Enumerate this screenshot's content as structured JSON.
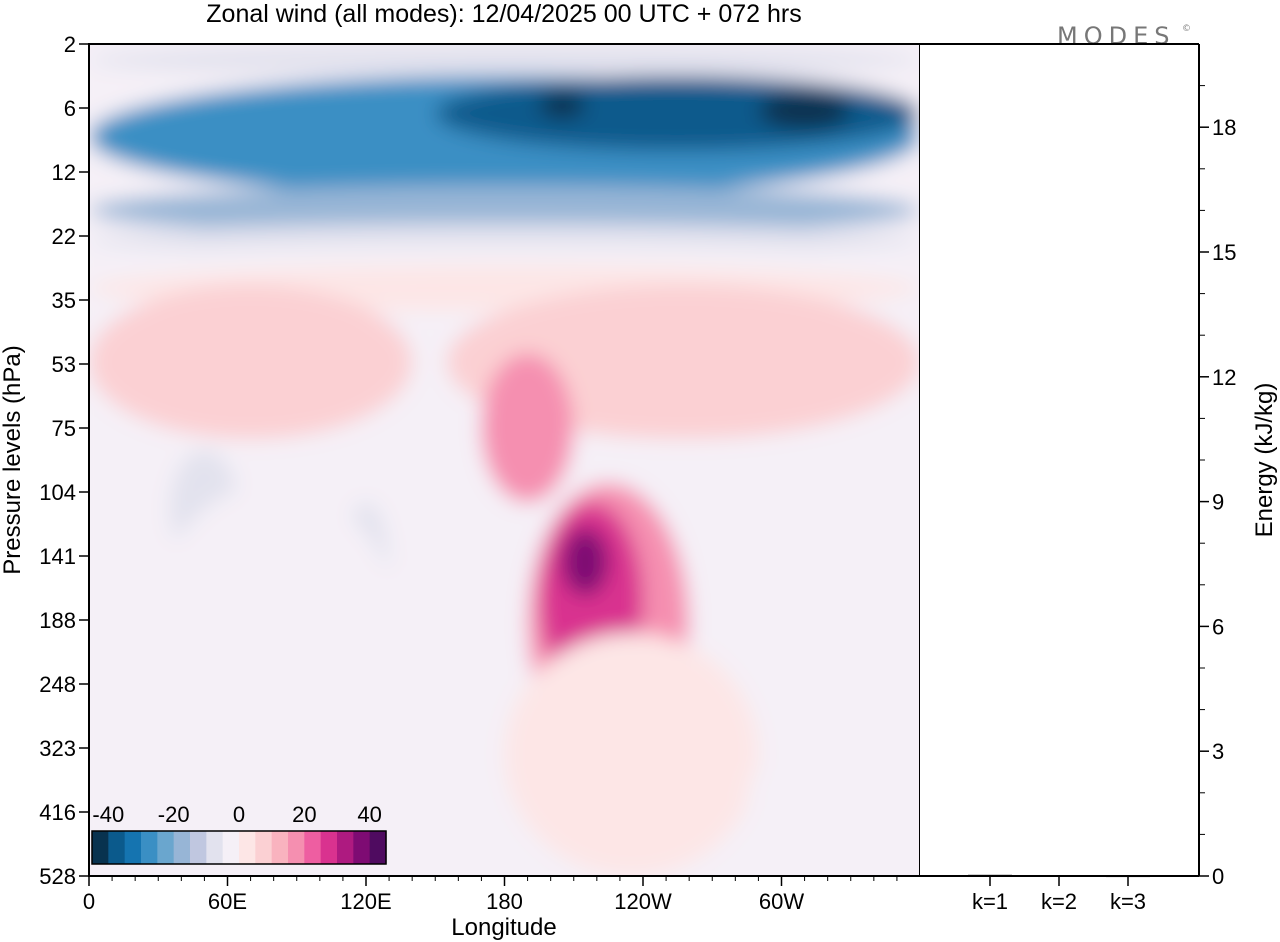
{
  "chart_data": {
    "type": "heatmap",
    "title": "Zonal wind (all modes):  12/04/2025  00 UTC  + 072 hrs",
    "logo_text": "MODES",
    "logo_mark": "©",
    "xlabel": "Longitude",
    "ylabel": "Pressure levels (hPa)",
    "y2label": "Energy (kJ/kg)",
    "x_ticks": [
      "0",
      "60E",
      "120E",
      "180",
      "120W",
      "60W"
    ],
    "y_ticks": [
      "2",
      "6",
      "12",
      "22",
      "35",
      "53",
      "75",
      "104",
      "141",
      "188",
      "248",
      "323",
      "416",
      "528"
    ],
    "y2_ticks": [
      "0",
      "3",
      "6",
      "9",
      "12",
      "15",
      "18"
    ],
    "energy_bars": {
      "categories": [
        "k=1",
        "k=2",
        "k=3"
      ],
      "values": [
        0.03,
        0.02,
        0.01
      ],
      "ylim": [
        0,
        20
      ]
    },
    "colorbar": {
      "tick_labels": [
        "-40",
        "-20",
        "0",
        "20",
        "40"
      ],
      "range": [
        -45,
        45
      ],
      "colors": [
        "#08324f",
        "#0b5a8c",
        "#1574b0",
        "#3a8fc4",
        "#6aa6ce",
        "#97b5d6",
        "#c0c7e0",
        "#e2e2ee",
        "#f5f0f7",
        "#fde6e6",
        "#fbd0d3",
        "#f9b3bf",
        "#f58fb0",
        "#ee5ea1",
        "#d9328f",
        "#ae1a80",
        "#7e0b73",
        "#4f0b60"
      ]
    },
    "field": {
      "x_range_deg": [
        0,
        360
      ],
      "levels": [
        2,
        6,
        12,
        22,
        35,
        53,
        75,
        104,
        141,
        188,
        248,
        323,
        416,
        528
      ],
      "background": -1,
      "regions": [
        {
          "v": -10,
          "lon": [
            0,
            360
          ],
          "lev": [
            2,
            4
          ]
        },
        {
          "v": -30,
          "lon": [
            0,
            360
          ],
          "lev": [
            4,
            16
          ]
        },
        {
          "v": -40,
          "lon": [
            150,
            360
          ],
          "lev": [
            4,
            10
          ]
        },
        {
          "v": -45,
          "lon": [
            195,
            215
          ],
          "lev": [
            5,
            7
          ]
        },
        {
          "v": -45,
          "lon": [
            290,
            330
          ],
          "lev": [
            5,
            8
          ]
        },
        {
          "v": -20,
          "lon": [
            0,
            360
          ],
          "lev": [
            14,
            22
          ]
        },
        {
          "v": -10,
          "lon": [
            0,
            360
          ],
          "lev": [
            20,
            26
          ]
        },
        {
          "v": -5,
          "lon": [
            0,
            360
          ],
          "lev": [
            24,
            30
          ]
        },
        {
          "v": 4,
          "lon": [
            0,
            360
          ],
          "lev": [
            28,
            38
          ]
        },
        {
          "v": 8,
          "lon": [
            0,
            140
          ],
          "lev": [
            32,
            80
          ]
        },
        {
          "v": 8,
          "lon": [
            155,
            360
          ],
          "lev": [
            32,
            80
          ]
        },
        {
          "v": 15,
          "lon": [
            170,
            210
          ],
          "lev": [
            50,
            110
          ]
        },
        {
          "v": 15,
          "lon": [
            190,
            260
          ],
          "lev": [
            100,
            350
          ]
        },
        {
          "v": 25,
          "lon": [
            195,
            240
          ],
          "lev": [
            110,
            260
          ]
        },
        {
          "v": 35,
          "lon": [
            205,
            225
          ],
          "lev": [
            125,
            170
          ]
        },
        {
          "v": 4,
          "lon": [
            180,
            290
          ],
          "lev": [
            200,
            528
          ]
        },
        {
          "v": -10,
          "lon": [
            35,
            65
          ],
          "lev": [
            85,
            150
          ]
        },
        {
          "v": -10,
          "lon": [
            110,
            130
          ],
          "lev": [
            110,
            200
          ]
        },
        {
          "v": -5,
          "lon": [
            20,
            140
          ],
          "lev": [
            100,
            528
          ]
        },
        {
          "v": -5,
          "lon": [
            285,
            360
          ],
          "lev": [
            300,
            528
          ]
        }
      ]
    }
  }
}
